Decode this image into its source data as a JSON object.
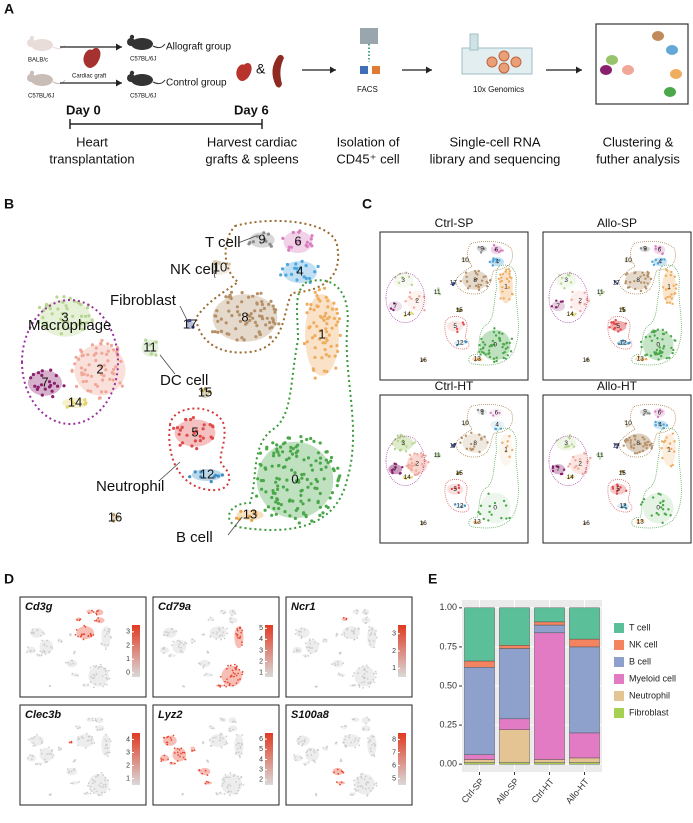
{
  "figure": {
    "panel_labels": [
      "A",
      "B",
      "C",
      "D",
      "E"
    ],
    "a": {
      "donor_strain": "BALB/c",
      "control_donor_strain": "C57BL/6J",
      "graft": "Cardiac graft",
      "result_strain_allo": "C57BL/6J",
      "result_strain_control": "C57BL/6J",
      "allograft_group": "Allograft group",
      "control_group": "Control group",
      "ampersand": "&",
      "facs": "FACS",
      "genomics": "10x Genomics",
      "day0": "Day 0",
      "day6": "Day 6",
      "steps": [
        [
          "Heart",
          "transplantation"
        ],
        [
          "Harvest cardiac",
          "grafts & spleens"
        ],
        [
          "Isolation of",
          "CD45⁺ cell"
        ],
        [
          "Single-cell RNA",
          "library and sequencing"
        ],
        [
          "Clustering &",
          "futher analysis"
        ]
      ]
    },
    "b": {
      "cell_types": [
        "T cell",
        "NK cell",
        "Fibroblast",
        "Macrophage",
        "DC cell",
        "Neutrophil",
        "B cell"
      ],
      "clusters": [
        "0",
        "1",
        "2",
        "3",
        "4",
        "5",
        "6",
        "7",
        "8",
        "9",
        "10",
        "11",
        "12",
        "13",
        "14",
        "15",
        "16",
        "17"
      ]
    },
    "c": {
      "samples": [
        "Ctrl-SP",
        "Allo-SP",
        "Ctrl-HT",
        "Allo-HT"
      ]
    },
    "d": [
      {
        "gene": "Cd3g",
        "lim": [
          -0.3,
          3.5
        ],
        "ticks": [
          3,
          2,
          1,
          0
        ]
      },
      {
        "gene": "Cd79a",
        "lim": [
          0.6,
          5.3
        ],
        "ticks": [
          5,
          4,
          3,
          2,
          1
        ]
      },
      {
        "gene": "Ncr1",
        "lim": [
          0.5,
          3.5
        ],
        "ticks": [
          3,
          2,
          1
        ]
      },
      {
        "gene": "Clec3b",
        "lim": [
          0.5,
          4.5
        ],
        "ticks": [
          4,
          3,
          2,
          1
        ]
      },
      {
        "gene": "Lyz2",
        "lim": [
          1.5,
          6.6
        ],
        "ticks": [
          6,
          5,
          4,
          3,
          2
        ]
      },
      {
        "gene": "S100a8",
        "lim": [
          4.5,
          8.5
        ],
        "ticks": [
          8,
          7,
          6,
          5
        ]
      }
    ]
  },
  "chart_data": {
    "type": "stacked_bar",
    "categories": [
      "Ctrl-SP",
      "Allo-SP",
      "Ctrl-HT",
      "Allo-HT"
    ],
    "series": [
      {
        "name": "T cell",
        "color": "#5bbf9a",
        "values": [
          0.34,
          0.24,
          0.09,
          0.2
        ]
      },
      {
        "name": "NK cell",
        "color": "#f4845f",
        "values": [
          0.04,
          0.02,
          0.02,
          0.05
        ]
      },
      {
        "name": "B cell",
        "color": "#8ea0cc",
        "values": [
          0.56,
          0.45,
          0.05,
          0.55
        ]
      },
      {
        "name": "Myeloid cell",
        "color": "#e27bc3",
        "values": [
          0.03,
          0.07,
          0.81,
          0.16
        ]
      },
      {
        "name": "Neutrophil",
        "color": "#e5c494",
        "values": [
          0.02,
          0.21,
          0.02,
          0.03
        ]
      },
      {
        "name": "Fibroblast",
        "color": "#a5d152",
        "values": [
          0.01,
          0.01,
          0.01,
          0.01
        ]
      }
    ],
    "ylim": [
      -0.05,
      1.05
    ],
    "yticks": [
      {
        "value": 0,
        "label": "0.00"
      },
      {
        "value": 0.25,
        "label": "0.25"
      },
      {
        "value": 0.5,
        "label": "0.50"
      },
      {
        "value": 0.75,
        "label": "0.75"
      },
      {
        "value": 1,
        "label": "1.00"
      }
    ],
    "grid": true,
    "legend": "right"
  }
}
